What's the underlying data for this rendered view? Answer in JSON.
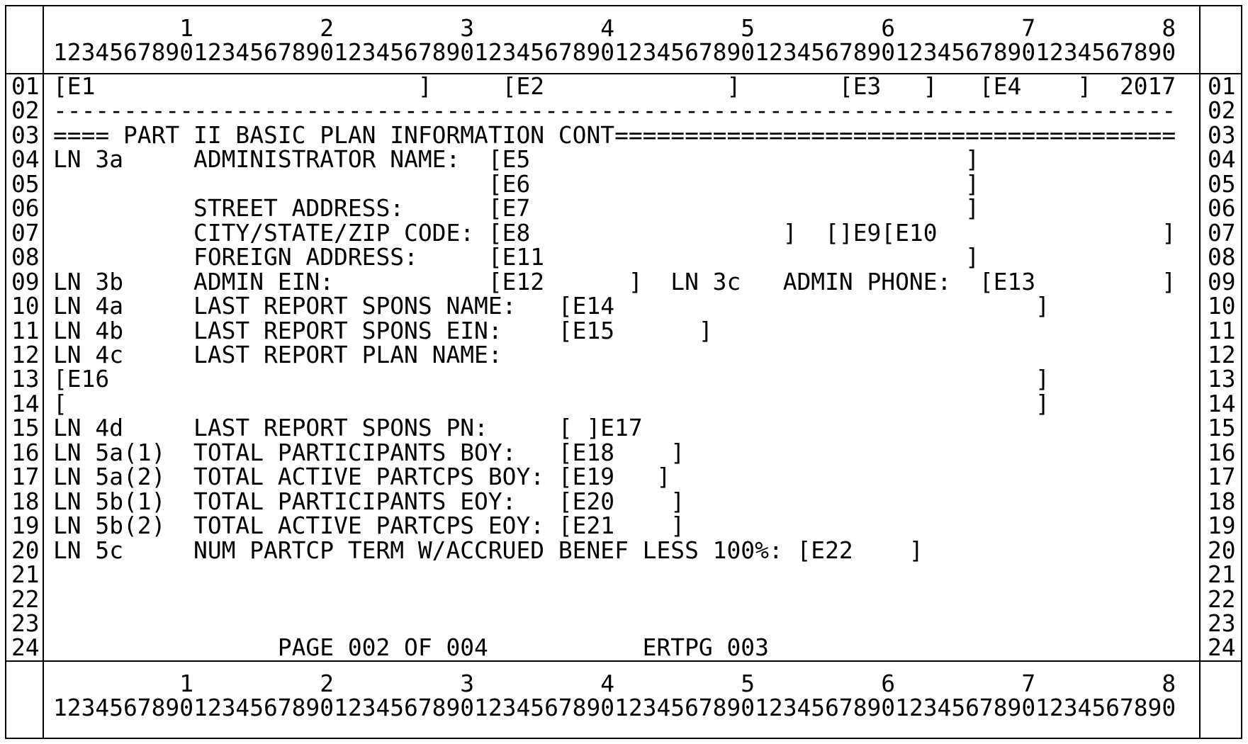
{
  "summary": {
    "section_title": "==== PART II BASIC PLAN INFORMATION CONT",
    "plan_year": "2017",
    "page_indicator": "PAGE 002 OF 004",
    "reference_code": "ERTPG 003",
    "field_ids": [
      "E1",
      "E2",
      "E3",
      "E4",
      "E5",
      "E6",
      "E7",
      "E8",
      "E9",
      "E10",
      "E11",
      "E12",
      "E13",
      "E14",
      "E15",
      "E16",
      "E17",
      "E18",
      "E19",
      "E20",
      "E21",
      "E22"
    ],
    "line_labels": [
      "LN 3a",
      "LN 3b",
      "LN 3c",
      "LN 4a",
      "LN 4b",
      "LN 4c",
      "LN 4d",
      "LN 5a(1)",
      "LN 5a(2)",
      "LN 5b(1)",
      "LN 5b(2)",
      "LN 5c"
    ]
  },
  "ruler": {
    "tens": "         1         2         3         4         5         6         7         8",
    "units": "12345678901234567890123456789012345678901234567890123456789012345678901234567890"
  },
  "gutter": {
    "line_numbers": [
      "01",
      "02",
      "03",
      "04",
      "05",
      "06",
      "07",
      "08",
      "09",
      "10",
      "11",
      "12",
      "13",
      "14",
      "15",
      "16",
      "17",
      "18",
      "19",
      "20",
      "21",
      "22",
      "23",
      "24"
    ]
  },
  "screen": {
    "lines": [
      "[E1                       ]     [E2             ]       [E3   ]   [E4    ]  2017",
      "--------------------------------------------------------------------------------",
      "==== PART II BASIC PLAN INFORMATION CONT========================================",
      "LN 3a     ADMINISTRATOR NAME:  [E5                               ]",
      "                               [E6                               ]",
      "          STREET ADDRESS:      [E7                               ]",
      "          CITY/STATE/ZIP CODE: [E8                  ]  []E9[E10                ]",
      "          FOREIGN ADDRESS:     [E11                              ]",
      "LN 3b     ADMIN EIN:           [E12      ]  LN 3c   ADMIN PHONE:  [E13         ]",
      "LN 4a     LAST REPORT SPONS NAME:   [E14                              ]",
      "LN 4b     LAST REPORT SPONS EIN:    [E15      ]",
      "LN 4c     LAST REPORT PLAN NAME:",
      "[E16                                                                  ]",
      "[                                                                     ]",
      "LN 4d     LAST REPORT SPONS PN:     [ ]E17",
      "LN 5a(1)  TOTAL PARTICIPANTS BOY:   [E18    ]",
      "LN 5a(2)  TOTAL ACTIVE PARTCPS BOY: [E19   ]",
      "LN 5b(1)  TOTAL PARTICIPANTS EOY:   [E20    ]",
      "LN 5b(2)  TOTAL ACTIVE PARTCPS EOY: [E21    ]",
      "LN 5c     NUM PARTCP TERM W/ACCRUED BENEF LESS 100%: [E22    ]",
      "",
      "",
      "",
      "                PAGE 002 OF 004           ERTPG 003"
    ]
  }
}
